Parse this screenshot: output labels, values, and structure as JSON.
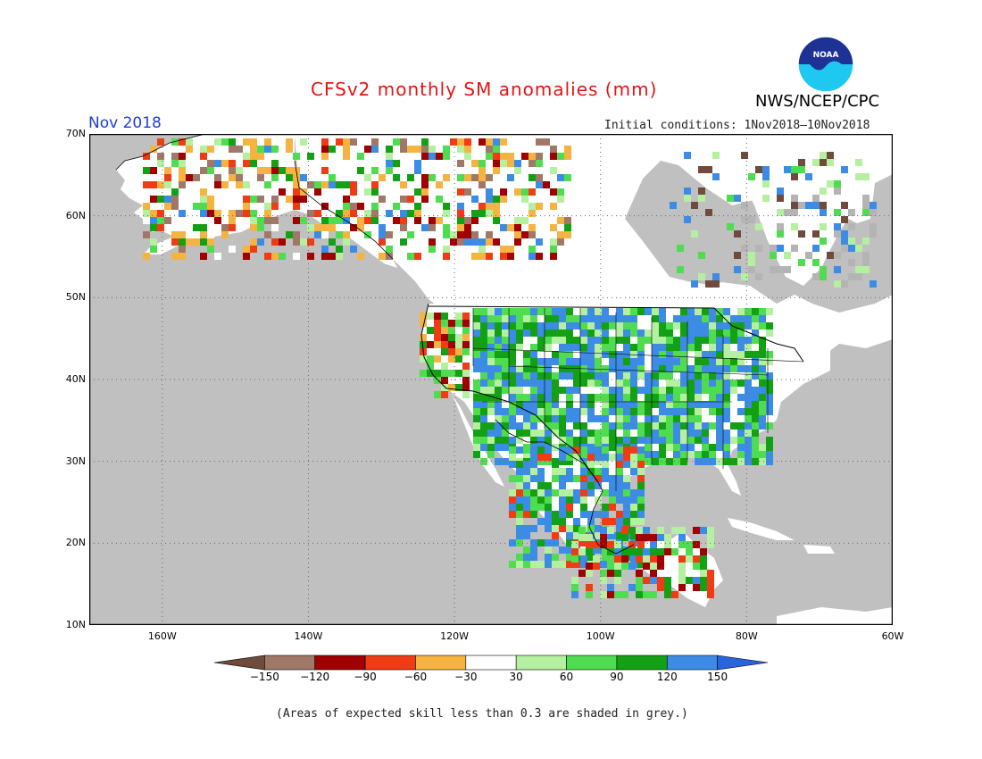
{
  "title": "CFSv2 monthly SM anomalies (mm)",
  "agency": "NWS/NCEP/CPC",
  "logo_text": "NOAA",
  "period": "Nov 2018",
  "initial_conditions": "Initial conditions: 1Nov2018–10Nov2018",
  "footnote": "(Areas of expected skill less than 0.3 are shaded in grey.)",
  "colors": {
    "ocean": "#c0c0c0",
    "land": "#ffffff",
    "title": "#e61414",
    "period": "#1e3cdc"
  },
  "map": {
    "lon_range": [
      -170,
      -60
    ],
    "lat_range": [
      10,
      70
    ],
    "lat_ticks": [
      "70N",
      "60N",
      "50N",
      "40N",
      "30N",
      "20N",
      "10N"
    ],
    "lon_ticks": [
      "160W",
      "140W",
      "120W",
      "100W",
      "80W",
      "60W"
    ],
    "grid": "dotted"
  },
  "legend": {
    "labels": [
      "−150",
      "−120",
      "−90",
      "−60",
      "−30",
      "30",
      "60",
      "90",
      "120",
      "150"
    ],
    "colors": [
      "#6e4b3c",
      "#a07868",
      "#a00000",
      "#f03c14",
      "#f5b441",
      "#ffffff",
      "#b4f0a0",
      "#50dc50",
      "#14a014",
      "#3c8ce6",
      "#2864dc"
    ]
  }
}
